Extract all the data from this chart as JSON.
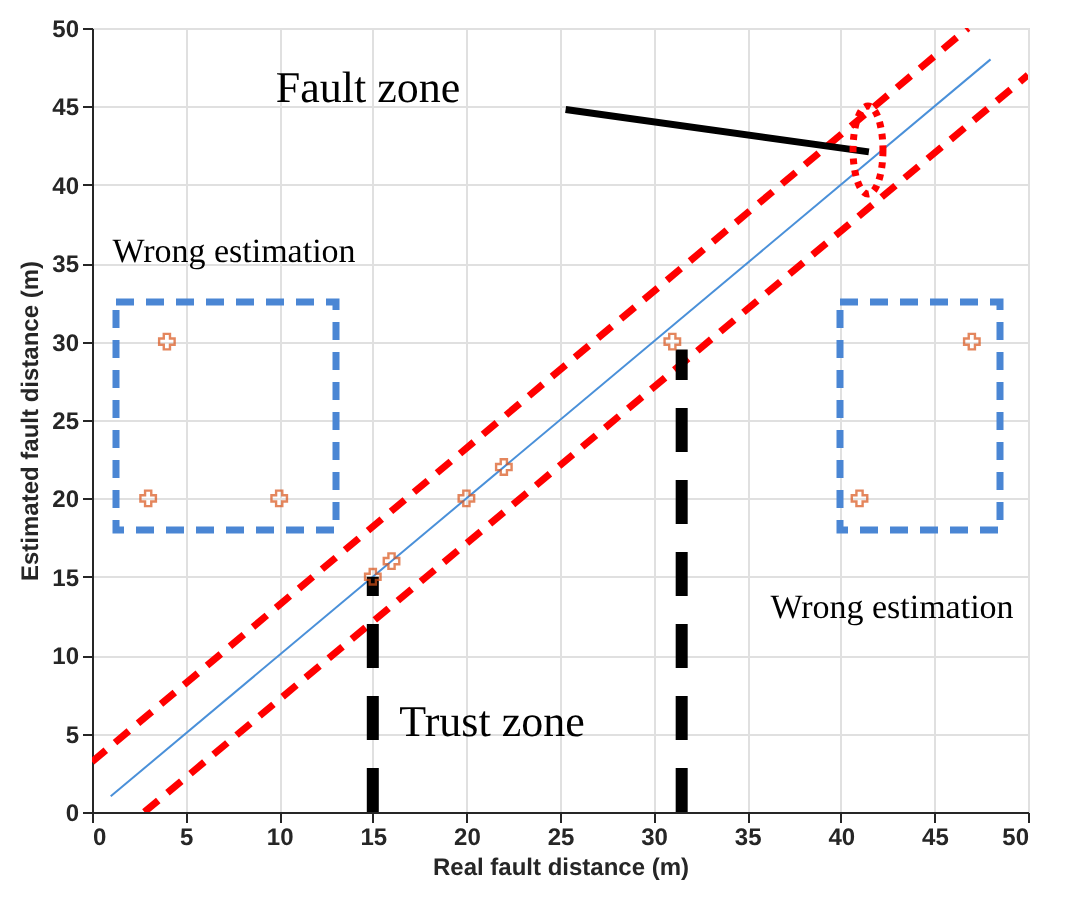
{
  "chart_data": {
    "type": "scatter",
    "xlabel": "Real fault distance (m)",
    "ylabel": "Estimated fault distance (m)",
    "xlim": [
      0,
      50
    ],
    "ylim": [
      0,
      50
    ],
    "xticks": [
      0,
      5,
      10,
      15,
      20,
      25,
      30,
      35,
      40,
      45,
      50
    ],
    "yticks": [
      0,
      5,
      10,
      15,
      20,
      25,
      30,
      35,
      40,
      45,
      50
    ],
    "grid": true,
    "series": [
      {
        "type": "line",
        "color": "#4a90d9",
        "x": [
          1,
          48
        ],
        "values": [
          1,
          48
        ],
        "line_style": "solid",
        "marker": "none"
      },
      {
        "type": "line",
        "color": "#ff0000",
        "x": [
          0,
          46.8
        ],
        "values": [
          3.2,
          50
        ],
        "line_style": "dashed",
        "marker": "none"
      },
      {
        "type": "line",
        "color": "#ff0000",
        "x": [
          2.8,
          50
        ],
        "values": [
          0,
          47
        ],
        "line_style": "dashed",
        "marker": "none"
      },
      {
        "type": "line",
        "color": "#000000",
        "x": [
          15,
          15
        ],
        "values": [
          0,
          15
        ],
        "line_style": "dashed",
        "marker": "none"
      },
      {
        "type": "line",
        "color": "#000000",
        "x": [
          31.5,
          31.5
        ],
        "values": [
          0,
          29.5
        ],
        "line_style": "dashed",
        "marker": "none"
      },
      {
        "type": "line",
        "color": "#000000",
        "x": [
          41.5,
          25.3
        ],
        "values": [
          42.1,
          44.8
        ],
        "line_style": "solid"
      },
      {
        "color": "#d95319",
        "x": [
          4,
          3,
          10,
          15,
          16,
          20,
          22,
          31,
          41,
          47
        ],
        "values": [
          30,
          20,
          20,
          15,
          16,
          20,
          22,
          30,
          20,
          30
        ],
        "marker": "cross"
      }
    ],
    "annotations": [
      "Fault zone",
      "Wrong estimation",
      "Wrong estimation",
      "Trust zone"
    ]
  }
}
